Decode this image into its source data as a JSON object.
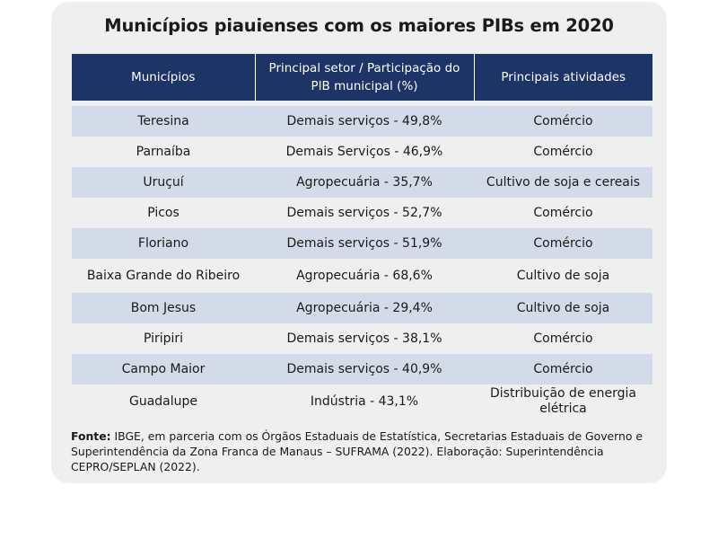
{
  "title": "Municípios piauienses com os maiores PIBs em 2020",
  "table": {
    "headers": [
      "Municípios",
      "Principal setor / Participação do PIB municipal (%)",
      "Principais atividades"
    ],
    "rows": [
      {
        "municipio": "Teresina",
        "setor": "Demais serviços - 49,8%",
        "atividade": "Comércio"
      },
      {
        "municipio": "Parnaíba",
        "setor": "Demais Serviços - 46,9%",
        "atividade": "Comércio"
      },
      {
        "municipio": "Uruçuí",
        "setor": "Agropecuária - 35,7%",
        "atividade": "Cultivo de soja e cereais"
      },
      {
        "municipio": "Picos",
        "setor": "Demais serviços - 52,7%",
        "atividade": "Comércio"
      },
      {
        "municipio": "Floriano",
        "setor": "Demais serviços - 51,9%",
        "atividade": "Comércio"
      },
      {
        "municipio": "Baixa Grande do Ribeiro",
        "setor": "Agropecuária - 68,6%",
        "atividade": "Cultivo de soja"
      },
      {
        "municipio": "Bom Jesus",
        "setor": "Agropecuária - 29,4%",
        "atividade": "Cultivo de soja"
      },
      {
        "municipio": "Piripiri",
        "setor": "Demais serviços - 38,1%",
        "atividade": "Comércio"
      },
      {
        "municipio": "Campo Maior",
        "setor": "Demais serviços - 40,9%",
        "atividade": "Comércio"
      },
      {
        "municipio": "Guadalupe",
        "setor": "Indústria - 43,1%",
        "atividade": "Distribuição de energia elétrica"
      }
    ]
  },
  "source": {
    "label": "Fonte:",
    "text": " IBGE, em parceria com os Órgãos Estaduais de Estatística, Secretarias Estaduais de Governo e Superintendência da Zona Franca de Manaus – SUFRAMA (2022). Elaboração: Superintendência CEPRO/SEPLAN (2022)."
  },
  "colors": {
    "header_bg": "#1c3466",
    "stripe_bg": "#d3dbe8",
    "card_bg": "#efefef"
  }
}
